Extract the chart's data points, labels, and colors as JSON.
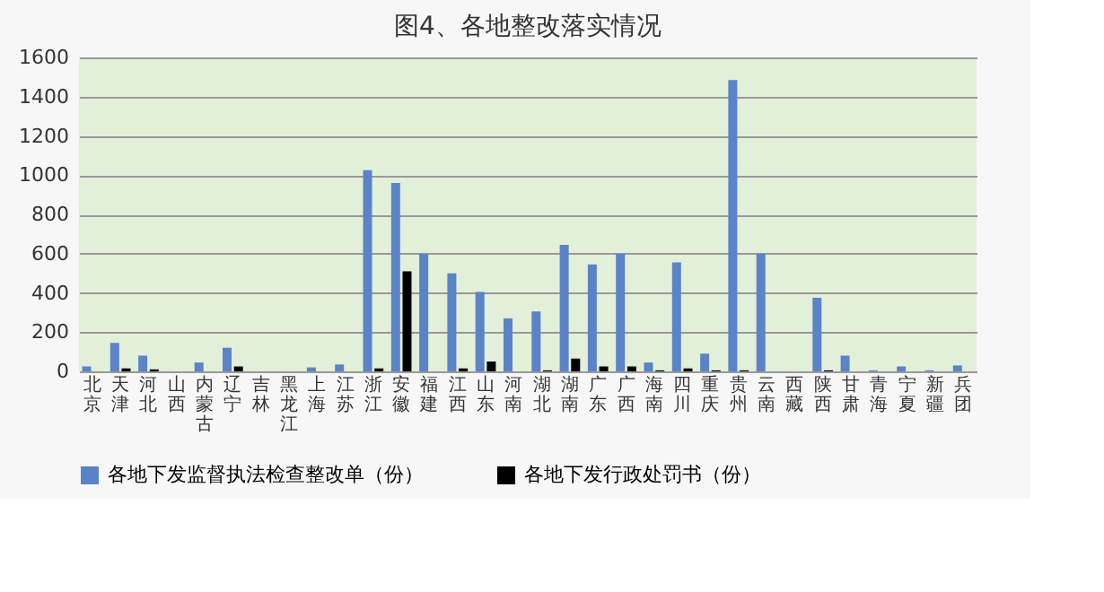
{
  "chart_data": {
    "type": "bar",
    "title": "图4、各地整改落实情况",
    "categories": [
      "北京",
      "天津",
      "河北",
      "山西",
      "内蒙古",
      "辽宁",
      "吉林",
      "黑龙江",
      "上海",
      "江苏",
      "浙江",
      "安徽",
      "福建",
      "江西",
      "山东",
      "河南",
      "湖北",
      "湖南",
      "广东",
      "广西",
      "海南",
      "四川",
      "重庆",
      "贵州",
      "云南",
      "西藏",
      "陕西",
      "甘肃",
      "青海",
      "宁夏",
      "新疆",
      "兵团"
    ],
    "series": [
      {
        "name": "各地下发监督执法检查整改单（份）",
        "color": "#5b83c7",
        "values": [
          25,
          145,
          80,
          0,
          45,
          120,
          0,
          0,
          20,
          35,
          1025,
          960,
          600,
          500,
          405,
          270,
          305,
          645,
          545,
          600,
          45,
          555,
          90,
          1485,
          600,
          0,
          375,
          80,
          5,
          25,
          5,
          30
        ]
      },
      {
        "name": "各地下发行政处罚书（份）",
        "color": "#000000",
        "values": [
          0,
          15,
          10,
          0,
          0,
          25,
          0,
          0,
          0,
          0,
          15,
          510,
          0,
          15,
          50,
          0,
          5,
          65,
          25,
          25,
          5,
          15,
          5,
          5,
          0,
          0,
          5,
          0,
          0,
          0,
          0,
          0
        ]
      }
    ],
    "ylim": [
      0,
      1600
    ],
    "yticks": [
      0,
      200,
      400,
      600,
      800,
      1000,
      1200,
      1400,
      1600
    ],
    "grid": "y",
    "legend": "bottom"
  }
}
